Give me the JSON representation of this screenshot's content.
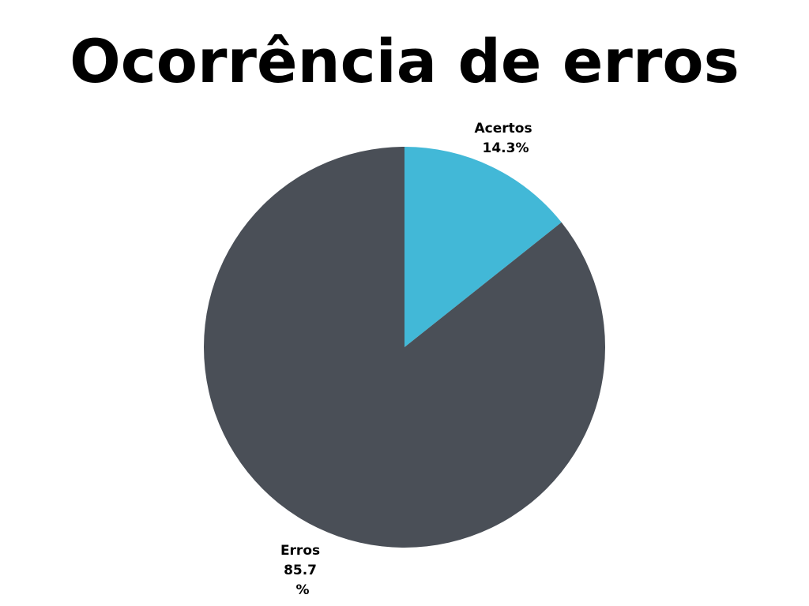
{
  "chart_data": {
    "type": "pie",
    "title": "Ocorrência de erros",
    "slices": [
      {
        "label": "Acertos",
        "value": 14.3,
        "value_label": "14.3%",
        "color": "#42b8d7"
      },
      {
        "label": "Erros",
        "value": 85.7,
        "value_label_lines": [
          "85.7",
          "%"
        ],
        "color": "#4a4f57"
      }
    ],
    "start_angle": "12 o'clock",
    "direction": "clockwise",
    "legend": "none"
  }
}
